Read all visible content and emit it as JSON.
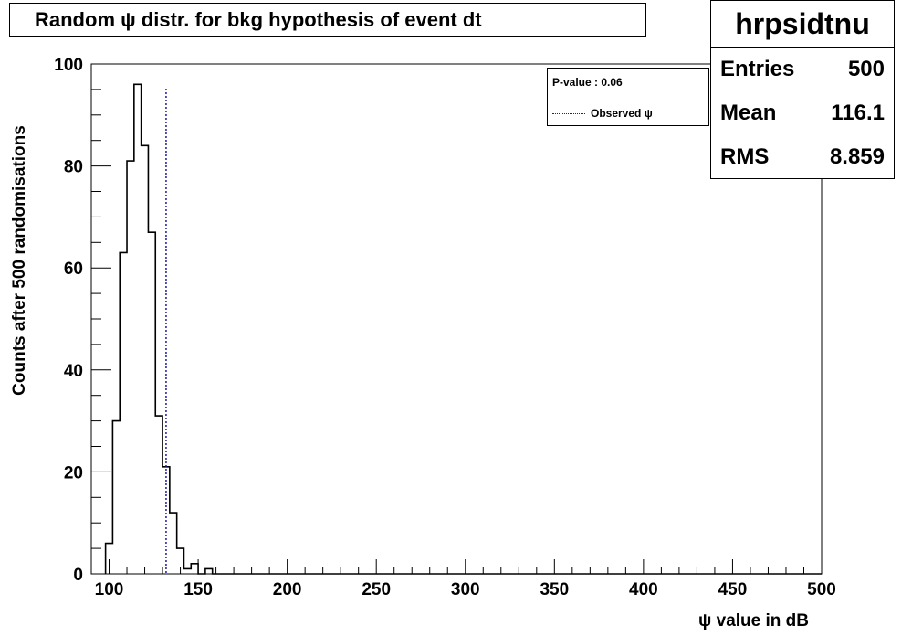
{
  "title": "Random ψ distr. for bkg hypothesis of event dt",
  "stats": {
    "name": "hrpsidtnu",
    "rows": [
      {
        "label": "Entries",
        "value": "500"
      },
      {
        "label": "Mean",
        "value": "116.1"
      },
      {
        "label": "RMS",
        "value": "8.859"
      }
    ]
  },
  "legend": {
    "pvalue": "P-value : 0.06",
    "observed_label": "Observed ψ"
  },
  "colors": {
    "histogram": "#000000",
    "observed": "#1a1aa8"
  },
  "chart_data": {
    "type": "histogram",
    "xlabel": "ψ value in dB",
    "ylabel": "Counts after 500 randomisations",
    "xlim": [
      90,
      500
    ],
    "ylim": [
      0,
      100
    ],
    "x_ticks": [
      100,
      150,
      200,
      250,
      300,
      350,
      400,
      450,
      500
    ],
    "y_ticks": [
      0,
      20,
      40,
      60,
      80,
      100
    ],
    "bin_width": 4,
    "bin_start": 98,
    "counts": [
      6,
      30,
      63,
      81,
      96,
      84,
      67,
      31,
      21,
      12,
      5,
      1,
      2,
      0,
      1
    ],
    "observed_value": 132
  }
}
